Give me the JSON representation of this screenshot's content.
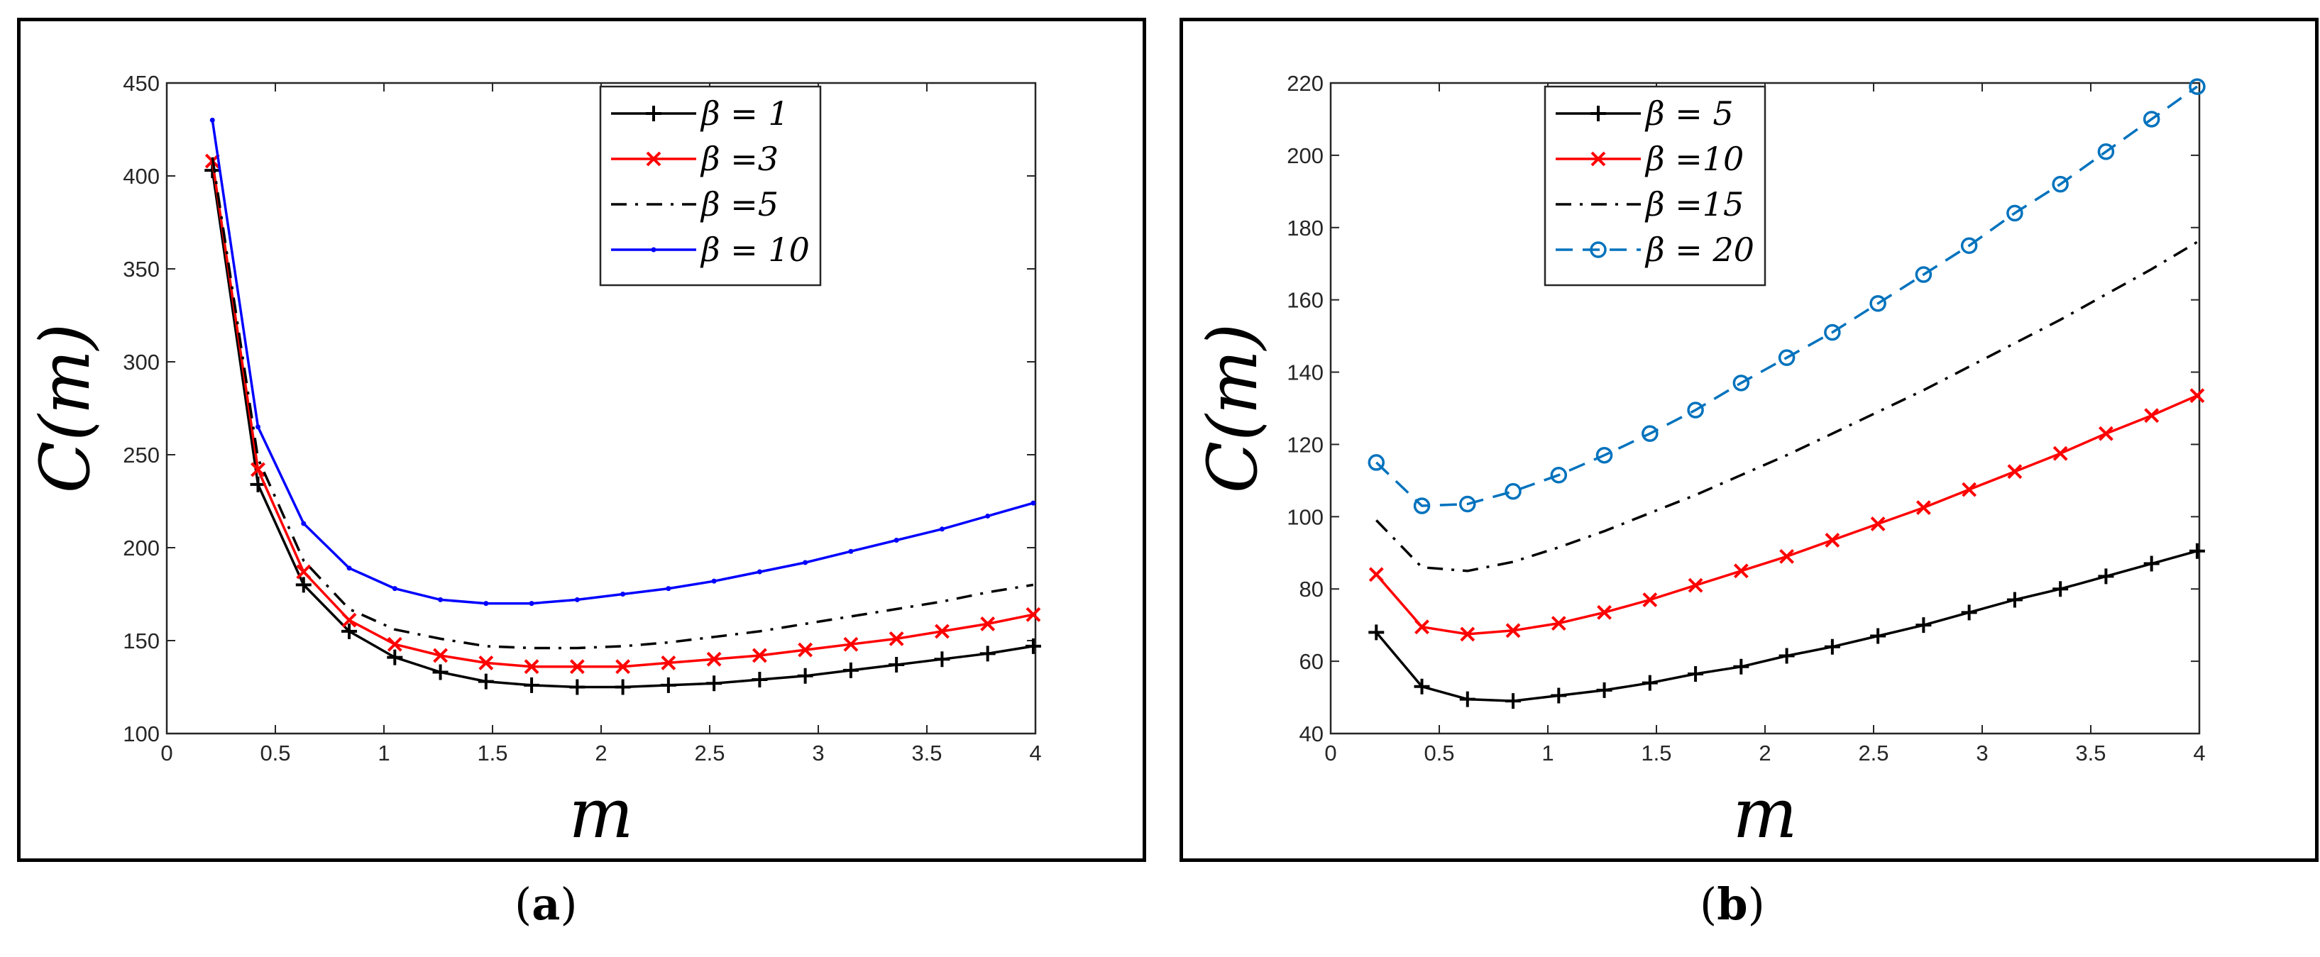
{
  "chart_data": [
    {
      "type": "line",
      "panel": "(a)",
      "caption_letter": "a",
      "xlabel": "m",
      "ylabel": "C(m)",
      "xlim": [
        0,
        4
      ],
      "ylim": [
        100,
        450
      ],
      "xticks": [
        0,
        0.5,
        1,
        1.5,
        2,
        2.5,
        3,
        3.5,
        4
      ],
      "xtick_labels": [
        "0",
        "0.5",
        "1",
        "1.5",
        "2",
        "2.5",
        "3",
        "3.5",
        "4"
      ],
      "yticks": [
        100,
        150,
        200,
        250,
        300,
        350,
        400,
        450
      ],
      "ytick_labels": [
        "100",
        "150",
        "200",
        "250",
        "300",
        "350",
        "400",
        "450"
      ],
      "legend_position": "top-right",
      "x": [
        0.21,
        0.42,
        0.63,
        0.84,
        1.05,
        1.26,
        1.47,
        1.68,
        1.89,
        2.1,
        2.31,
        2.52,
        2.73,
        2.94,
        3.15,
        3.36,
        3.57,
        3.78,
        3.99
      ],
      "series": [
        {
          "name": "β = 1",
          "color": "#000000",
          "marker": "plus",
          "dash": "solid",
          "values": [
            403,
            234,
            180,
            155,
            141,
            133,
            128,
            126,
            125,
            125,
            126,
            127,
            129,
            131,
            134,
            137,
            140,
            143,
            147
          ]
        },
        {
          "name": "β =3",
          "color": "#ff0000",
          "marker": "x",
          "dash": "solid",
          "values": [
            408,
            242,
            187,
            161,
            148,
            142,
            138,
            136,
            136,
            136,
            138,
            140,
            142,
            145,
            148,
            151,
            155,
            159,
            164
          ]
        },
        {
          "name": "β =5",
          "color": "#000000",
          "marker": "none",
          "dash": "dashdot",
          "values": [
            410,
            248,
            193,
            167,
            156,
            151,
            147,
            146,
            146,
            147,
            149,
            152,
            155,
            159,
            163,
            167,
            171,
            176,
            180
          ]
        },
        {
          "name": "β = 10",
          "color": "#0000ff",
          "marker": "dot",
          "dash": "solid",
          "values": [
            430,
            265,
            213,
            189,
            178,
            172,
            170,
            170,
            172,
            175,
            178,
            182,
            187,
            192,
            198,
            204,
            210,
            217,
            224
          ]
        }
      ]
    },
    {
      "type": "line",
      "panel": "(b)",
      "caption_letter": "b",
      "xlabel": "m",
      "ylabel": "C(m)",
      "xlim": [
        0,
        4
      ],
      "ylim": [
        40,
        220
      ],
      "xticks": [
        0,
        0.5,
        1,
        1.5,
        2,
        2.5,
        3,
        3.5,
        4
      ],
      "xtick_labels": [
        "0",
        "0.5",
        "1",
        "1.5",
        "2",
        "2.5",
        "3",
        "3.5",
        "4"
      ],
      "yticks": [
        40,
        60,
        80,
        100,
        120,
        140,
        160,
        180,
        200,
        220
      ],
      "ytick_labels": [
        "40",
        "60",
        "80",
        "100",
        "120",
        "140",
        "160",
        "180",
        "200",
        "220"
      ],
      "legend_position": "top-left",
      "x": [
        0.21,
        0.42,
        0.63,
        0.84,
        1.05,
        1.26,
        1.47,
        1.68,
        1.89,
        2.1,
        2.31,
        2.52,
        2.73,
        2.94,
        3.15,
        3.36,
        3.57,
        3.78,
        3.99
      ],
      "series": [
        {
          "name": "β = 5",
          "color": "#000000",
          "marker": "plus",
          "dash": "solid",
          "values": [
            68,
            53,
            49.5,
            49,
            50.5,
            52,
            54,
            56.5,
            58.5,
            61.5,
            64,
            67,
            70,
            73.5,
            77,
            80,
            83.5,
            87,
            90.5
          ]
        },
        {
          "name": "β =10",
          "color": "#ff0000",
          "marker": "x",
          "dash": "solid",
          "values": [
            84,
            69.5,
            67.5,
            68.5,
            70.5,
            73.5,
            77,
            81,
            85,
            89,
            93.5,
            98,
            102.5,
            107.5,
            112.5,
            117.5,
            123,
            128,
            133.5
          ]
        },
        {
          "name": "β =15",
          "color": "#000000",
          "marker": "none",
          "dash": "dashdot",
          "values": [
            99,
            86,
            85,
            87.5,
            91.5,
            96,
            101,
            106,
            111.5,
            117,
            123,
            129,
            135,
            141.5,
            148,
            154.5,
            161.5,
            168.5,
            176
          ]
        },
        {
          "name": "β = 20",
          "color": "#0072bd",
          "marker": "circle",
          "dash": "dashed",
          "values": [
            115,
            103,
            103.5,
            107,
            111.5,
            117,
            123,
            129.5,
            137,
            144,
            151,
            159,
            167,
            175,
            184,
            192,
            201,
            210,
            219
          ]
        }
      ]
    }
  ]
}
